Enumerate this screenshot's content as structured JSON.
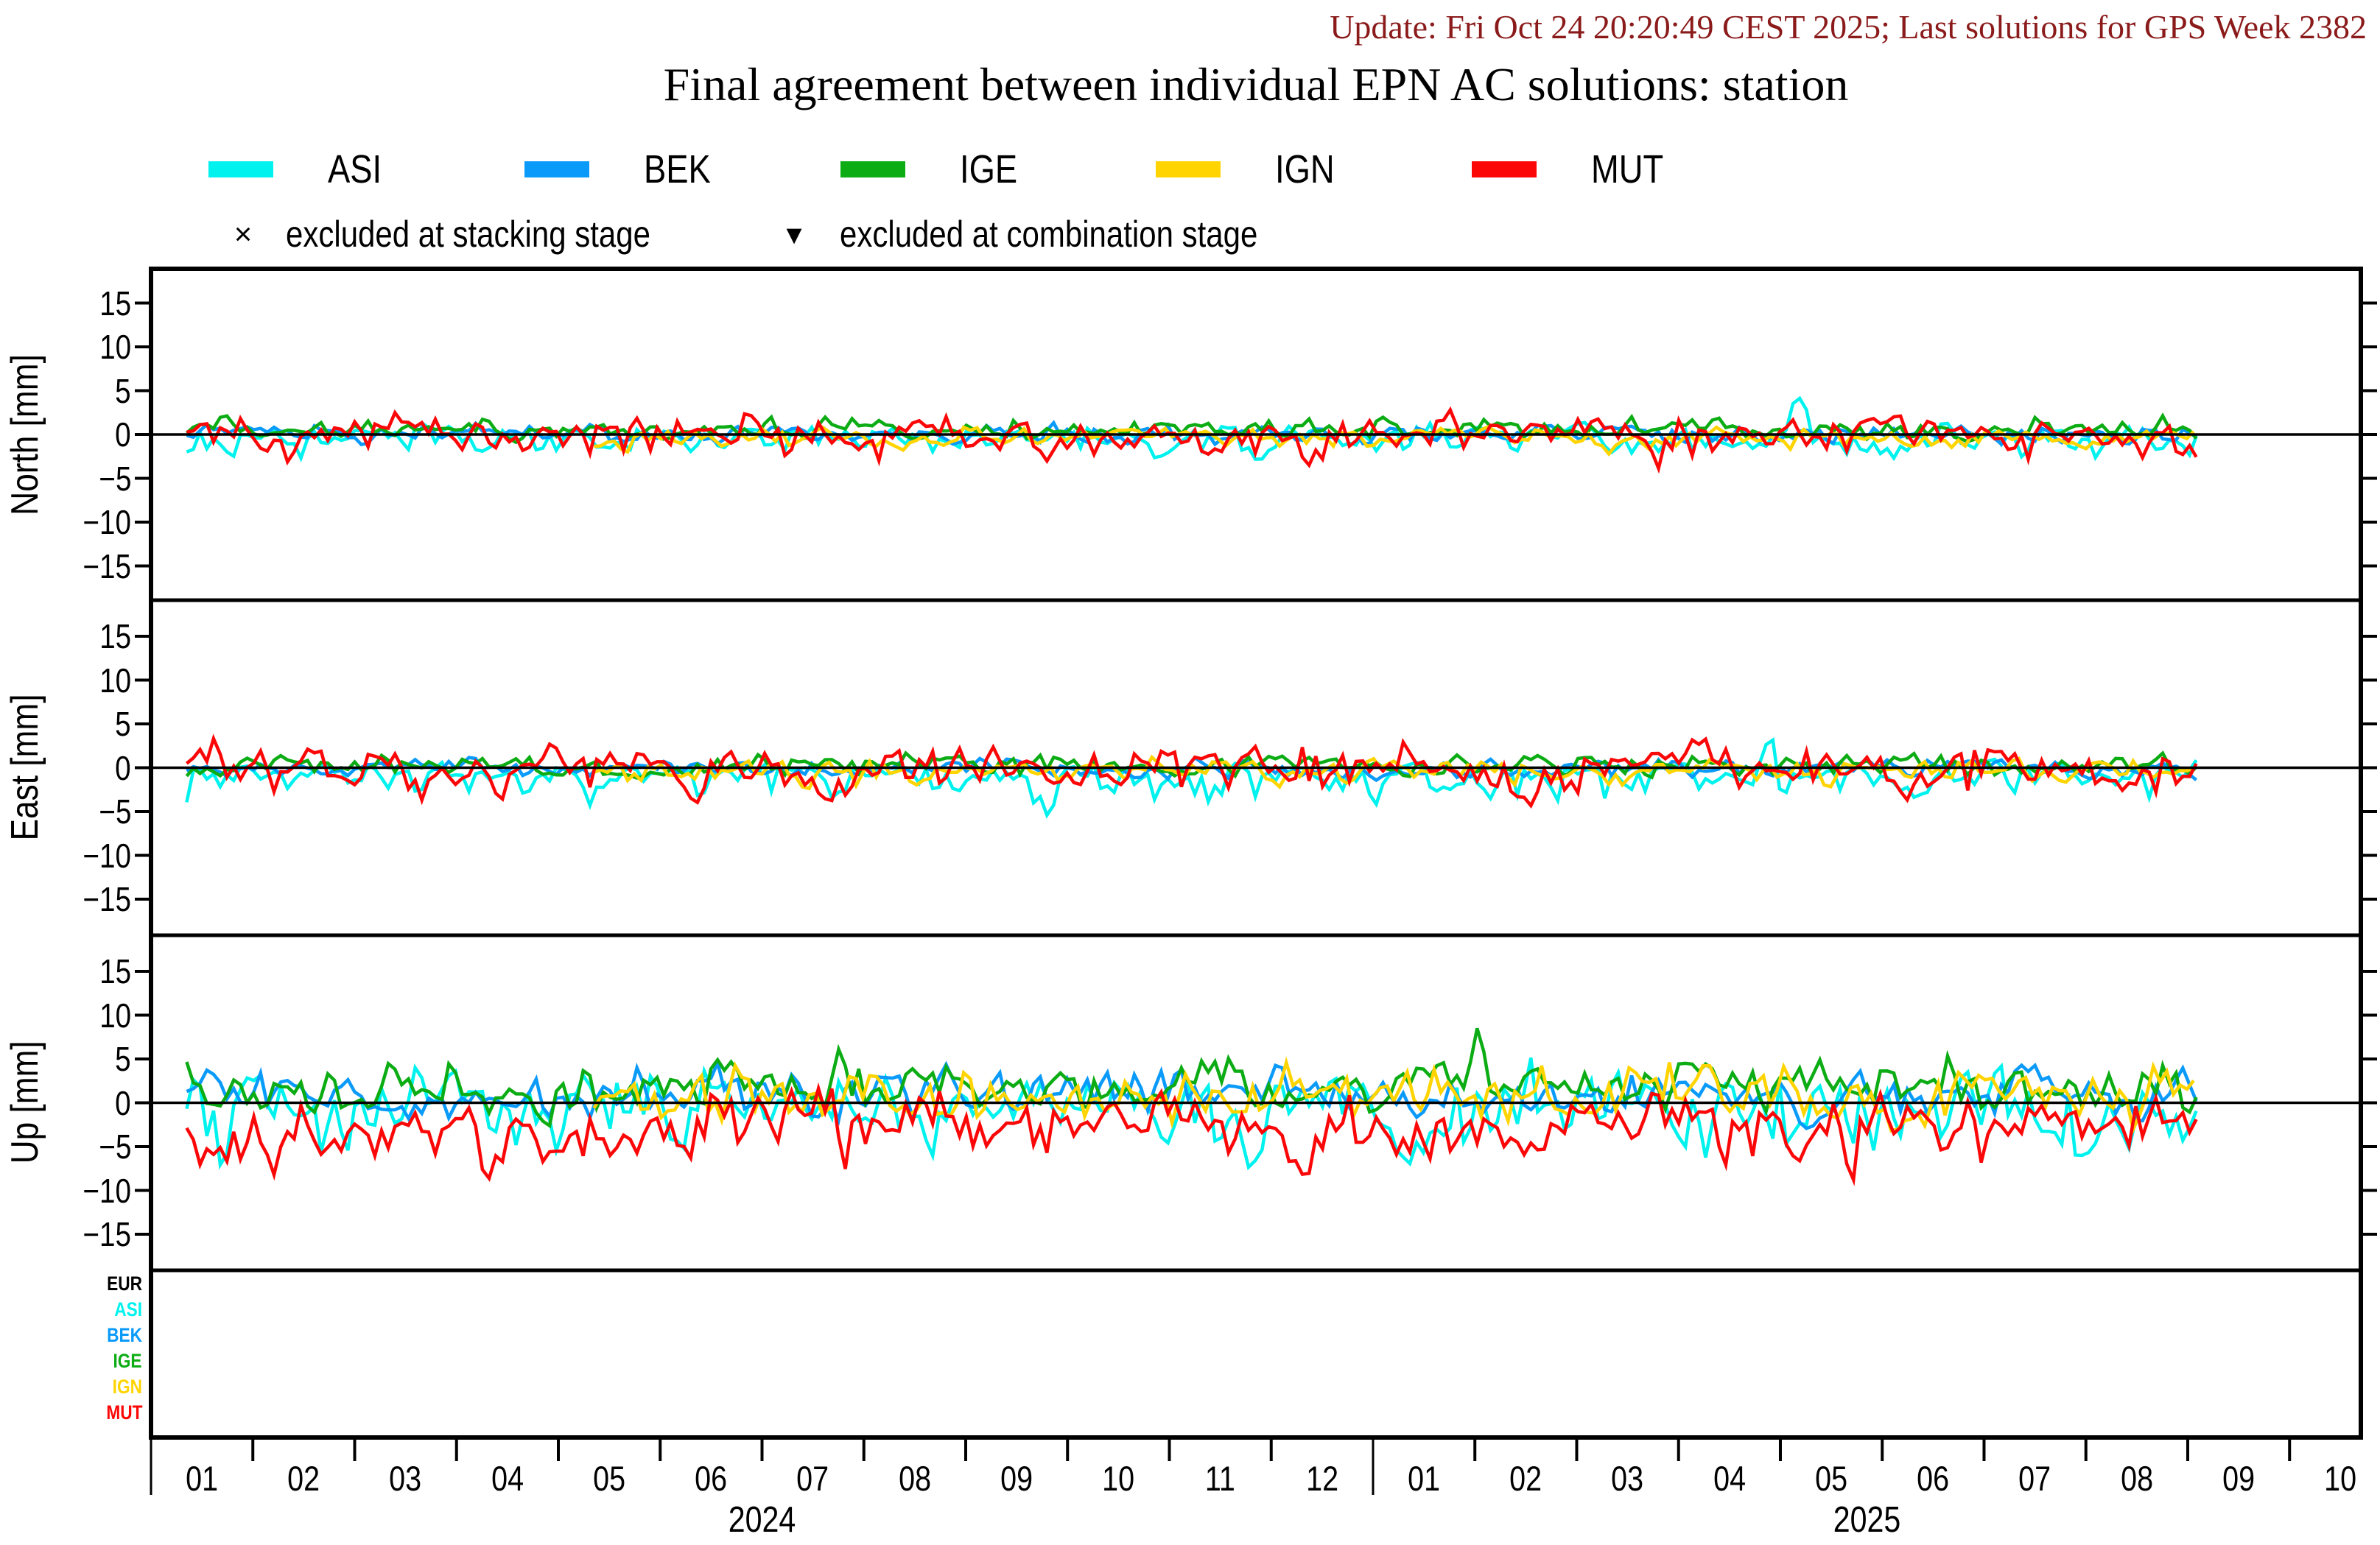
{
  "update_text": "Update: Fri Oct 24 20:20:49 CEST 2025; Last solutions for GPS Week 2382",
  "title": "Final agreement between individual EPN AC solutions: station",
  "legend": {
    "series": [
      {
        "label": "ASI",
        "color": "#00f2ee"
      },
      {
        "label": "BEK",
        "color": "#0a9afa"
      },
      {
        "label": "IGE",
        "color": "#0cac14"
      },
      {
        "label": "IGN",
        "color": "#ffd400"
      },
      {
        "label": "MUT",
        "color": "#fb0707"
      }
    ],
    "excluded": [
      {
        "symbol": "×",
        "label": "excluded at stacking stage"
      },
      {
        "symbol": "▾",
        "label": "excluded at combination stage"
      }
    ]
  },
  "chart_data": {
    "type": "line",
    "title": "Final agreement between individual EPN AC solutions: station",
    "panels": [
      {
        "key": "north",
        "ylabel": "North [mm]"
      },
      {
        "key": "east",
        "ylabel": "East [mm]"
      },
      {
        "key": "up",
        "ylabel": "Up [mm]"
      },
      {
        "key": "excluded",
        "ylabel": ""
      }
    ],
    "y_ticks": [
      15,
      10,
      5,
      0,
      -5,
      -10,
      -15
    ],
    "ylim": [
      -19,
      19
    ],
    "y_unit": "mm",
    "x_axis": {
      "months_2024": [
        "01",
        "02",
        "03",
        "04",
        "05",
        "06",
        "07",
        "08",
        "09",
        "10",
        "11",
        "12"
      ],
      "months_2025": [
        "01",
        "02",
        "03",
        "04",
        "05",
        "06",
        "07",
        "08",
        "09",
        "10"
      ],
      "year_labels": [
        "2024",
        "2025"
      ],
      "total_months_span": 21.7
    },
    "data_start_month": 0.35,
    "data_end_month": 20.1,
    "sample_step_months": 0.066,
    "ac_list_labels": [
      {
        "label": "EUR",
        "color": "#000000"
      },
      {
        "label": "ASI",
        "color": "#00f2ee"
      },
      {
        "label": "BEK",
        "color": "#0a9afa"
      },
      {
        "label": "IGE",
        "color": "#0cac14"
      },
      {
        "label": "IGN",
        "color": "#ffd400"
      },
      {
        "label": "MUT",
        "color": "#fb0707"
      }
    ],
    "series": [
      {
        "name": "ASI",
        "color": "#00f2ee",
        "start_month": 0.35,
        "stats": {
          "north": {
            "bias": -0.4,
            "sd": 0.8,
            "neg": 1.3,
            "pos": 1.0,
            "spikes": [
              {
                "month": 16.2,
                "amp": 5.0,
                "width": 0.09
              }
            ]
          },
          "east": {
            "bias": -0.9,
            "sd": 1.0,
            "neg": 1.6,
            "pos": 0.7,
            "spikes": [
              {
                "month": 15.9,
                "amp": 4.5,
                "width": 0.09
              }
            ]
          },
          "up": {
            "bias": -0.3,
            "sd": 2.1,
            "neg": 1.3,
            "pos": 1.1
          }
        }
      },
      {
        "name": "BEK",
        "color": "#0a9afa",
        "start_month": 0.35,
        "stats": {
          "north": {
            "bias": 0.0,
            "sd": 0.55,
            "neg": 1.0,
            "pos": 1.0
          },
          "east": {
            "bias": -0.2,
            "sd": 0.5,
            "neg": 1.0,
            "pos": 1.0
          },
          "up": {
            "bias": 0.9,
            "sd": 1.4,
            "neg": 1.0,
            "pos": 1.0
          }
        }
      },
      {
        "name": "IGE",
        "color": "#0cac14",
        "start_month": 0.35,
        "stats": {
          "north": {
            "bias": 0.5,
            "sd": 0.6,
            "neg": 0.9,
            "pos": 1.1
          },
          "east": {
            "bias": 0.3,
            "sd": 0.6,
            "neg": 1.0,
            "pos": 1.0
          },
          "up": {
            "bias": 1.6,
            "sd": 1.5,
            "neg": 0.9,
            "pos": 1.1,
            "spikes": [
              {
                "month": 13.0,
                "amp": 5.5,
                "width": 0.09
              }
            ]
          }
        }
      },
      {
        "name": "IGN",
        "color": "#ffd400",
        "start_month": 4.35,
        "stats": {
          "north": {
            "bias": -0.2,
            "sd": 0.6,
            "neg": 1.1,
            "pos": 0.9
          },
          "east": {
            "bias": -0.3,
            "sd": 0.7,
            "neg": 1.2,
            "pos": 0.9
          },
          "up": {
            "bias": 0.8,
            "sd": 1.7,
            "neg": 1.0,
            "pos": 1.0
          }
        }
      },
      {
        "name": "MUT",
        "color": "#fb0707",
        "start_month": 0.35,
        "stats": {
          "north": {
            "bias": -0.1,
            "sd": 1.1,
            "neg": 1.2,
            "pos": 1.0
          },
          "east": {
            "bias": -0.2,
            "sd": 1.3,
            "neg": 1.1,
            "pos": 1.0
          },
          "up": {
            "bias": -2.6,
            "sd": 1.9,
            "neg": 1.25,
            "pos": 0.9,
            "early": {
              "until": 7,
              "amp": -1.6
            }
          }
        }
      }
    ]
  }
}
